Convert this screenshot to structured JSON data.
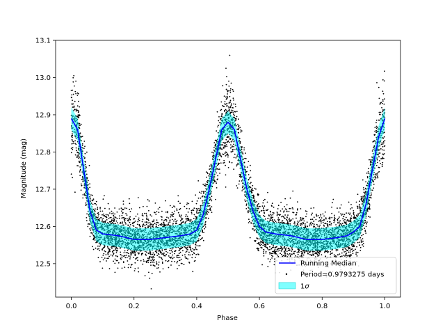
{
  "chart_data": {
    "type": "scatter",
    "title": "",
    "xlabel": "Phase",
    "ylabel": "Magnitude (mag)",
    "xlim": [
      -0.05,
      1.05
    ],
    "ylim": [
      13.1,
      12.41
    ],
    "y_inverted": true,
    "xticks": [
      0.0,
      0.2,
      0.4,
      0.6,
      0.8,
      1.0
    ],
    "xtick_labels": [
      "0.0",
      "0.2",
      "0.4",
      "0.6",
      "0.8",
      "1.0"
    ],
    "yticks": [
      12.5,
      12.6,
      12.7,
      12.8,
      12.9,
      13.0,
      13.1
    ],
    "ytick_labels": [
      "12.5",
      "12.6",
      "12.7",
      "12.8",
      "12.9",
      "13.0",
      "13.1"
    ],
    "grid": false,
    "legend_position": "lower-right",
    "series": [
      {
        "name": "Running Median",
        "kind": "line",
        "color": "#0000ff",
        "x": [
          0.0,
          0.02,
          0.04,
          0.06,
          0.08,
          0.1,
          0.15,
          0.2,
          0.25,
          0.3,
          0.35,
          0.38,
          0.4,
          0.42,
          0.44,
          0.46,
          0.48,
          0.5,
          0.52,
          0.54,
          0.56,
          0.58,
          0.6,
          0.62,
          0.65,
          0.7,
          0.75,
          0.8,
          0.85,
          0.88,
          0.9,
          0.92,
          0.94,
          0.96,
          0.98,
          1.0
        ],
        "y": [
          12.89,
          12.86,
          12.75,
          12.64,
          12.59,
          12.58,
          12.575,
          12.565,
          12.565,
          12.57,
          12.575,
          12.58,
          12.59,
          12.63,
          12.7,
          12.78,
          12.86,
          12.88,
          12.86,
          12.78,
          12.7,
          12.64,
          12.6,
          12.585,
          12.58,
          12.575,
          12.565,
          12.565,
          12.57,
          12.575,
          12.585,
          12.6,
          12.66,
          12.75,
          12.84,
          12.89
        ]
      },
      {
        "name": "Period=0.9793275 days",
        "kind": "points",
        "color": "#000000",
        "count": 6000,
        "scatter_sigma_mag": 0.035,
        "seed": 7
      },
      {
        "name": "1σ",
        "kind": "band",
        "color": "#00ffff",
        "half_width_mag": 0.03
      }
    ]
  },
  "legend": {
    "items": [
      {
        "label": "Running Median",
        "symbol": "line",
        "color": "#0000ff"
      },
      {
        "label": "Period=0.9793275 days",
        "symbol": "dot",
        "color": "#000000"
      },
      {
        "label_prefix": "1",
        "label_symbol": "σ",
        "symbol": "patch",
        "color": "#00ffff"
      }
    ]
  }
}
